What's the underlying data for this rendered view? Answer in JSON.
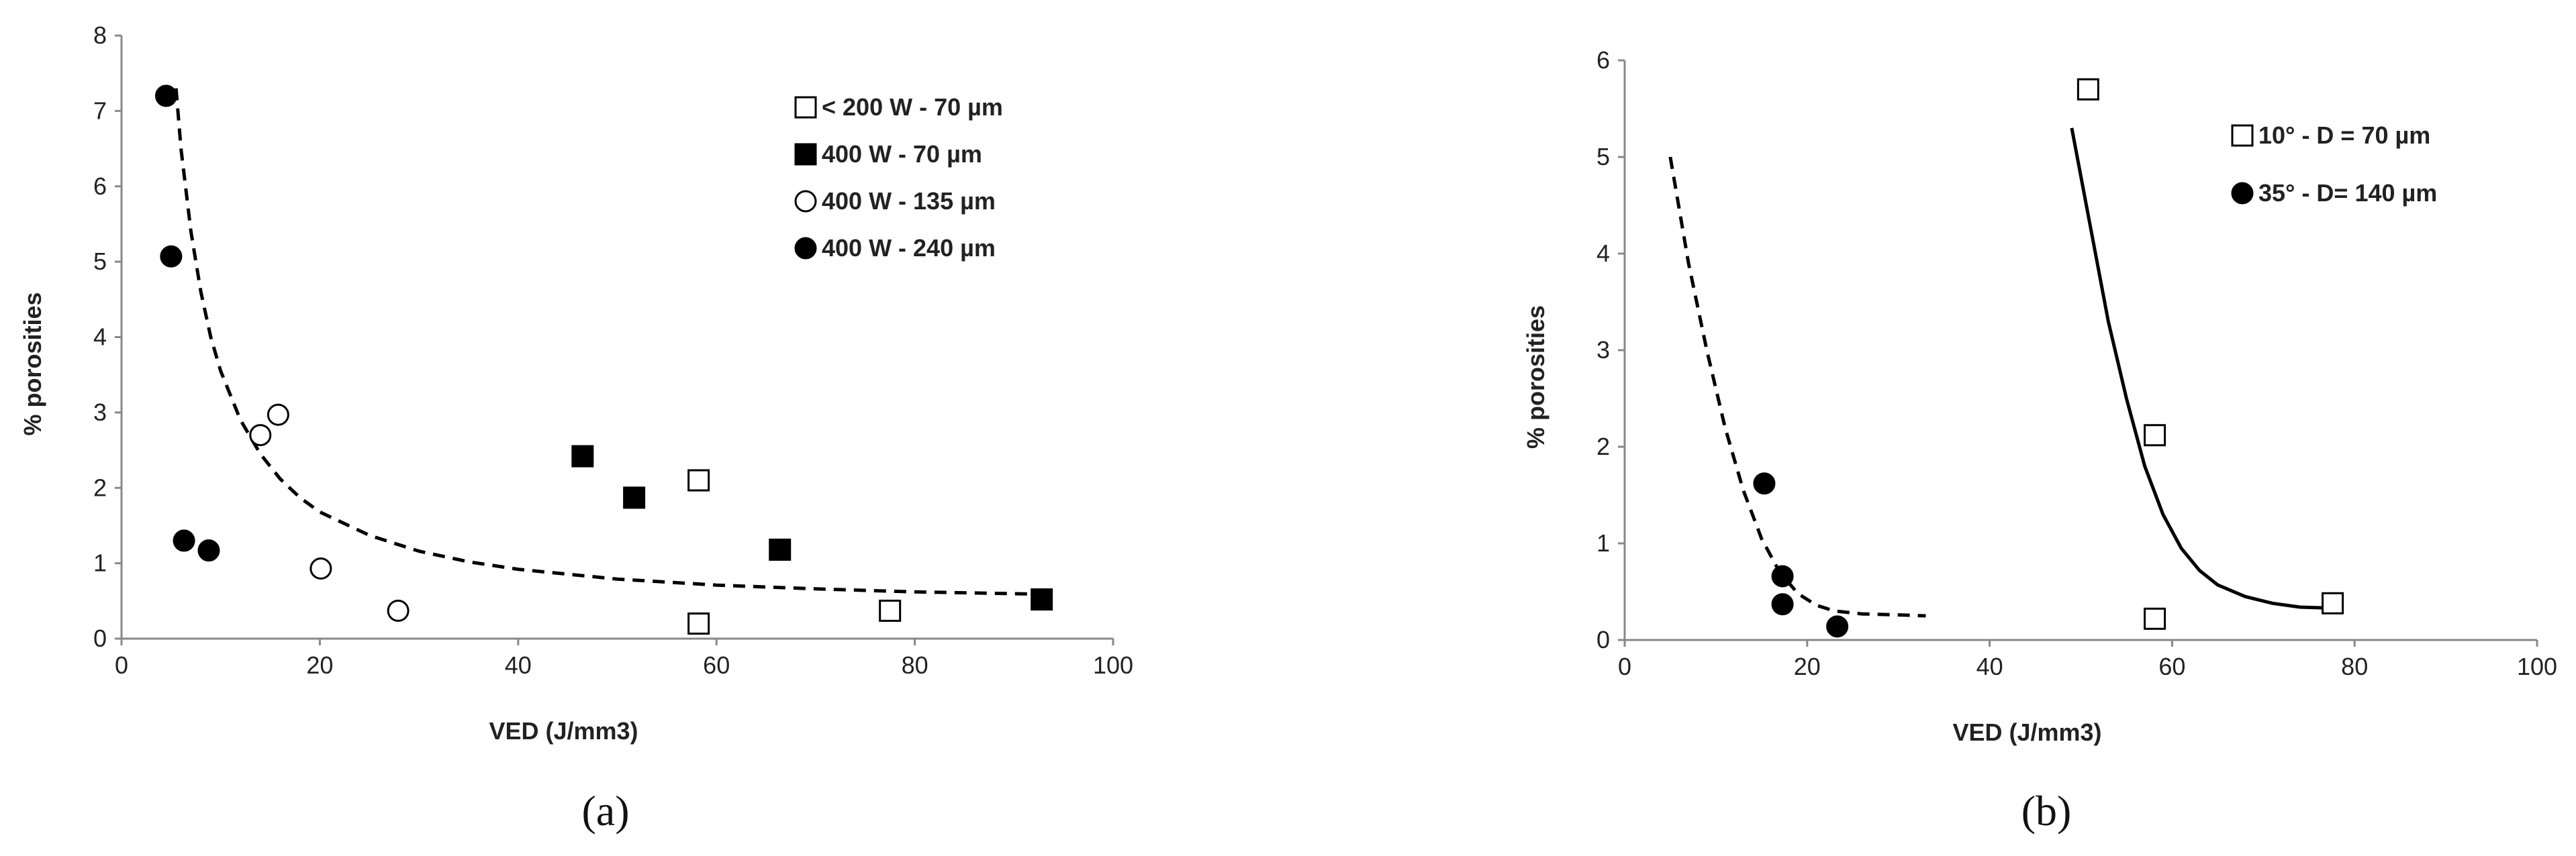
{
  "chart_data": [
    {
      "type": "scatter",
      "panel_label": "(a)",
      "title": "",
      "xlabel": "VED (J/mm3)",
      "ylabel": "% porosities",
      "xlim": [
        0,
        100
      ],
      "ylim": [
        0,
        8
      ],
      "xticks": [
        "0",
        "20",
        "40",
        "60",
        "80",
        "100"
      ],
      "yticks": [
        "0",
        "1",
        "2",
        "3",
        "4",
        "5",
        "6",
        "7",
        "8"
      ],
      "grid": false,
      "legend_position": "top-right",
      "series": [
        {
          "name": "< 200 W - 70 µm",
          "marker": "square-open",
          "points": [
            [
              58.2,
              2.1
            ],
            [
              58.2,
              0.2
            ],
            [
              77.5,
              0.37
            ]
          ]
        },
        {
          "name": "400 W - 70 µm",
          "marker": "square-filled",
          "points": [
            [
              46.5,
              2.42
            ],
            [
              51.7,
              1.87
            ],
            [
              66.4,
              1.18
            ],
            [
              92.8,
              0.52
            ]
          ]
        },
        {
          "name": "400 W - 135 µm",
          "marker": "circle-open",
          "points": [
            [
              14.0,
              2.7
            ],
            [
              15.8,
              2.97
            ],
            [
              20.1,
              0.93
            ],
            [
              27.9,
              0.37
            ]
          ]
        },
        {
          "name": "400 W - 240 µm",
          "marker": "circle-filled",
          "points": [
            [
              4.5,
              7.2
            ],
            [
              5.0,
              5.07
            ],
            [
              6.3,
              1.3
            ],
            [
              8.8,
              1.17
            ]
          ]
        }
      ],
      "trendlines": [
        {
          "style": "dashed",
          "points": [
            [
              5.5,
              7.3
            ],
            [
              6,
              6.5
            ],
            [
              7,
              5.4
            ],
            [
              8,
              4.6
            ],
            [
              9,
              4.0
            ],
            [
              10,
              3.55
            ],
            [
              12,
              2.9
            ],
            [
              14,
              2.45
            ],
            [
              16,
              2.12
            ],
            [
              18,
              1.87
            ],
            [
              20,
              1.68
            ],
            [
              25,
              1.37
            ],
            [
              30,
              1.16
            ],
            [
              35,
              1.02
            ],
            [
              40,
              0.92
            ],
            [
              50,
              0.79
            ],
            [
              60,
              0.71
            ],
            [
              70,
              0.66
            ],
            [
              80,
              0.62
            ],
            [
              92.8,
              0.59
            ]
          ]
        }
      ]
    },
    {
      "type": "scatter",
      "panel_label": "(b)",
      "title": "",
      "xlabel": "VED (J/mm3)",
      "ylabel": "% porosities",
      "xlim": [
        0,
        100
      ],
      "ylim": [
        0,
        6
      ],
      "xticks": [
        "0",
        "20",
        "40",
        "60",
        "80",
        "100"
      ],
      "yticks": [
        "0",
        "1",
        "2",
        "3",
        "4",
        "5",
        "6"
      ],
      "grid": false,
      "legend_position": "top-right",
      "series": [
        {
          "name": "10° - D = 70 µm",
          "marker": "square-open",
          "points": [
            [
              50.8,
              5.7
            ],
            [
              58.1,
              2.12
            ],
            [
              58.1,
              0.22
            ],
            [
              77.6,
              0.38
            ]
          ]
        },
        {
          "name": "35° - D= 140 µm",
          "marker": "circle-filled",
          "points": [
            [
              15.3,
              1.62
            ],
            [
              17.3,
              0.66
            ],
            [
              17.3,
              0.37
            ],
            [
              23.3,
              0.14
            ]
          ]
        }
      ],
      "trendlines": [
        {
          "style": "dashed",
          "points": [
            [
              5,
              5.0
            ],
            [
              7,
              3.9
            ],
            [
              9,
              3.0
            ],
            [
              11,
              2.2
            ],
            [
              13,
              1.55
            ],
            [
              15,
              1.05
            ],
            [
              17,
              0.7
            ],
            [
              19,
              0.48
            ],
            [
              21,
              0.36
            ],
            [
              23,
              0.3
            ],
            [
              26,
              0.27
            ],
            [
              30,
              0.26
            ],
            [
              33,
              0.25
            ]
          ]
        },
        {
          "style": "solid",
          "points": [
            [
              49,
              5.3
            ],
            [
              51,
              4.3
            ],
            [
              53,
              3.3
            ],
            [
              55,
              2.5
            ],
            [
              57,
              1.8
            ],
            [
              59,
              1.3
            ],
            [
              61,
              0.95
            ],
            [
              63,
              0.72
            ],
            [
              65,
              0.57
            ],
            [
              68,
              0.45
            ],
            [
              71,
              0.38
            ],
            [
              74,
              0.34
            ],
            [
              77.5,
              0.33
            ]
          ]
        }
      ]
    }
  ]
}
